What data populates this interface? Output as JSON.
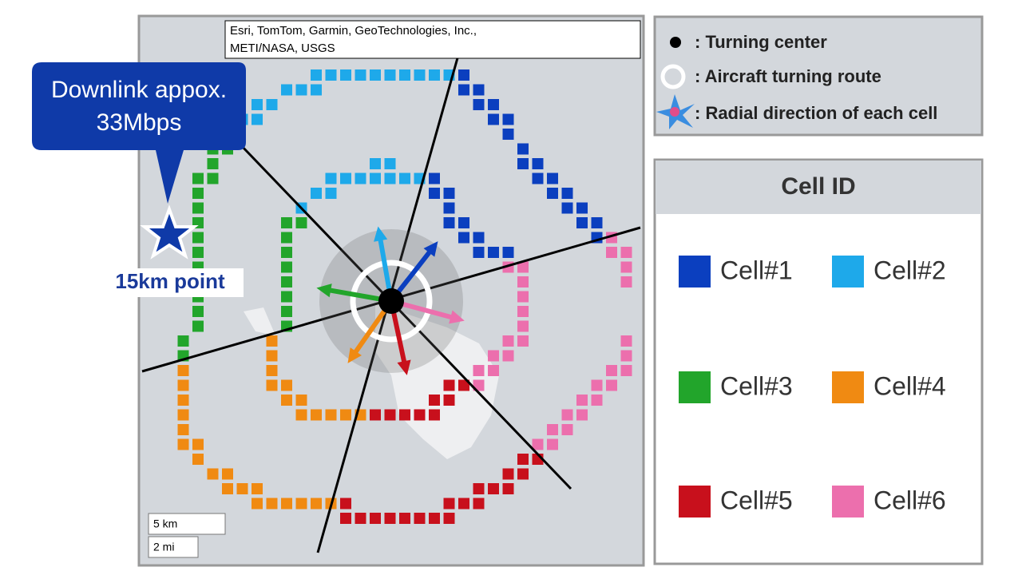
{
  "map": {
    "attribution": [
      "Esri, TomTom, Garmin, GeoTechnologies, Inc.,",
      "METI/NASA, USGS"
    ],
    "callout": [
      "Downlink appox.",
      "33Mbps"
    ],
    "point_label": "15km point",
    "scale": [
      "5 km",
      "2 mi"
    ]
  },
  "legend": {
    "items": [
      ": Turning center",
      ": Aircraft turning route",
      ": Radial direction of each cell"
    ]
  },
  "cell_id": {
    "title": "Cell ID",
    "cells": [
      {
        "name": "Cell#1",
        "color": "#0b3fbf"
      },
      {
        "name": "Cell#2",
        "color": "#1ea9ea"
      },
      {
        "name": "Cell#3",
        "color": "#22a52b"
      },
      {
        "name": "Cell#4",
        "color": "#f08a12"
      },
      {
        "name": "Cell#5",
        "color": "#c8101c"
      },
      {
        "name": "Cell#6",
        "color": "#ec6fad"
      }
    ]
  }
}
